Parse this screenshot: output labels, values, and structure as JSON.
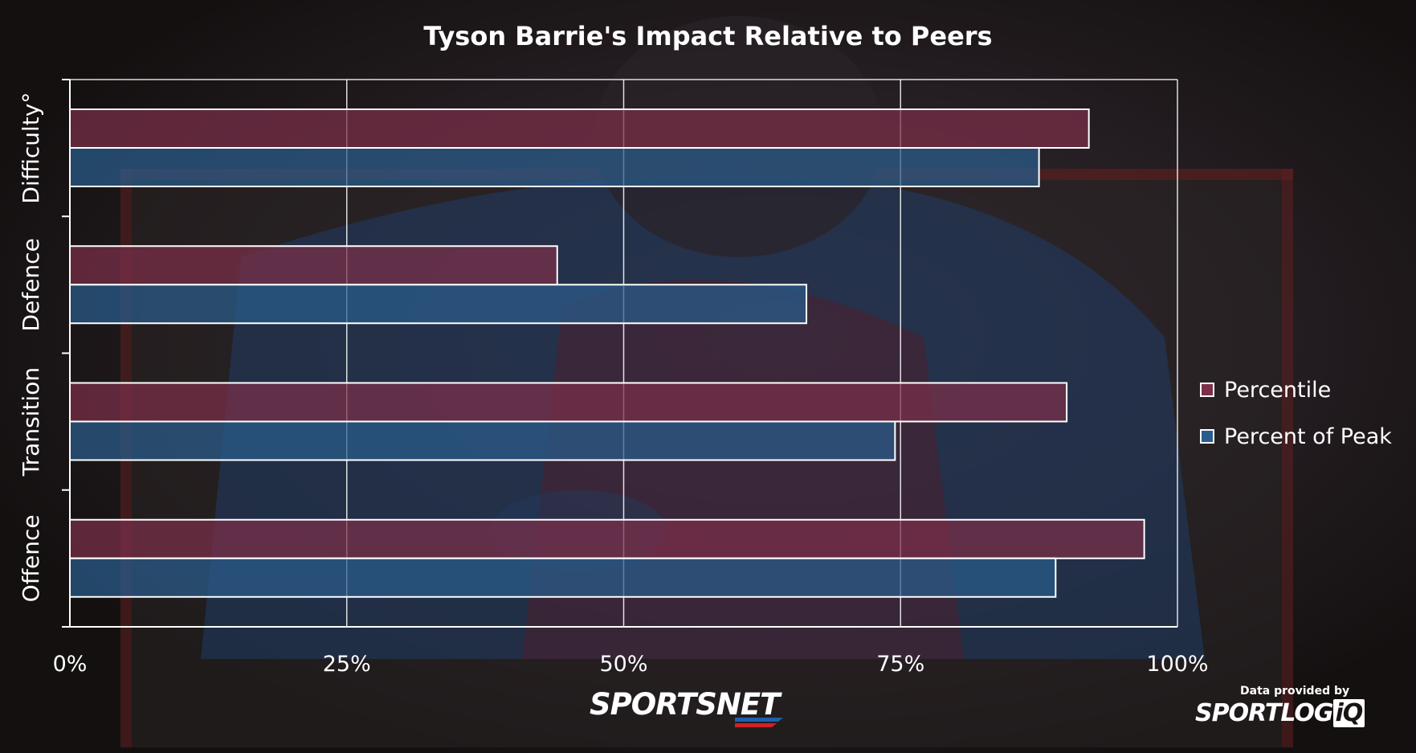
{
  "title": "Tyson Barrie's Impact Relative to Peers",
  "chart_data": {
    "type": "bar",
    "orientation": "horizontal",
    "title": "Tyson Barrie's Impact Relative to Peers",
    "categories": [
      "Difficulty°",
      "Defence",
      "Transition",
      "Offence"
    ],
    "series": [
      {
        "name": "Percentile",
        "color": "#7b2f4a",
        "values": [
          92,
          44,
          90,
          97
        ]
      },
      {
        "name": "Percent of Peak",
        "color": "#2a5d8c",
        "values": [
          87.5,
          66.5,
          74.5,
          89
        ]
      }
    ],
    "xlim": [
      0,
      100
    ],
    "xticks": [
      0,
      25,
      50,
      75,
      100
    ],
    "xtick_labels": [
      "0%",
      "25%",
      "50%",
      "75%",
      "100%"
    ],
    "xlabel": "",
    "ylabel": "",
    "grid": true,
    "legend_position": "right"
  },
  "branding": {
    "logo_text": "SPORTSNET",
    "provider_label": "Data provided by",
    "provider_logo": "SPORTLOG",
    "provider_logo_suffix": "iQ"
  },
  "colors": {
    "percentile": "#7b2f4a",
    "peak": "#2a5d8c",
    "axis": "#ffffff"
  }
}
